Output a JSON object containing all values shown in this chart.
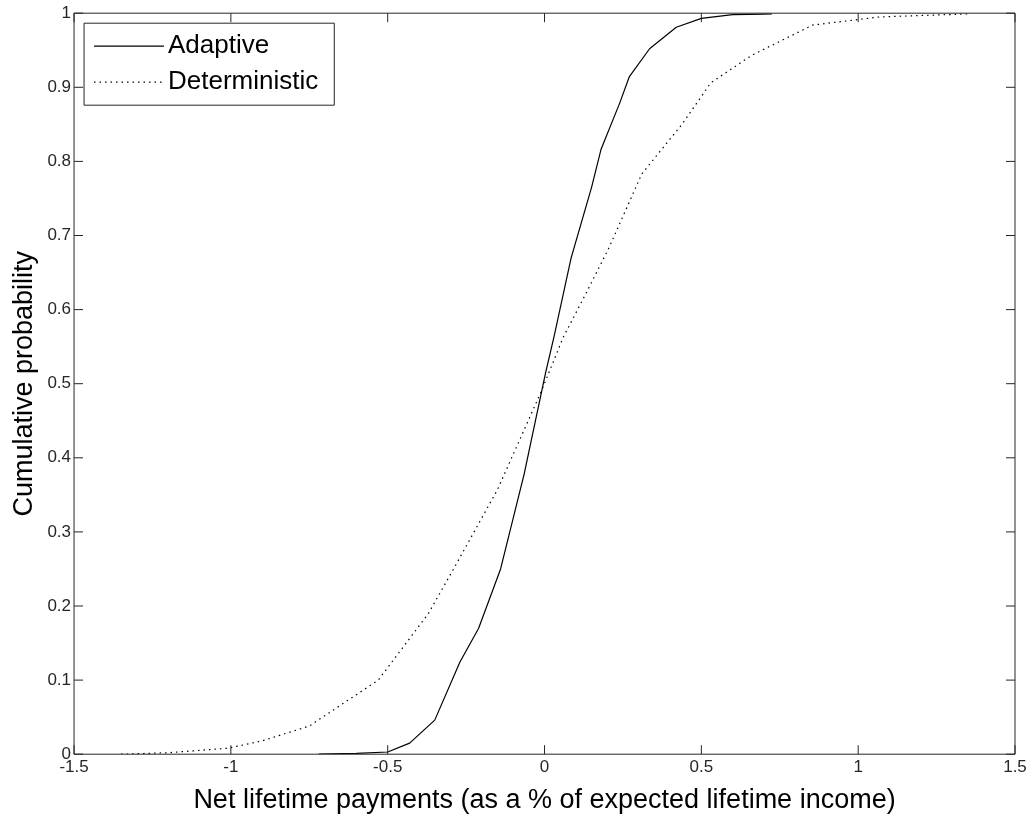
{
  "chart_data": {
    "type": "line",
    "xlabel": "Net lifetime payments (as a % of expected lifetime income)",
    "ylabel": "Cumulative probability",
    "xlim": [
      -1.5,
      1.5
    ],
    "xticks": [
      -1.5,
      -1,
      -0.5,
      0,
      0.5,
      1,
      1.5
    ],
    "ylim": [
      0,
      1
    ],
    "yticks": [
      0,
      0.1,
      0.2,
      0.3,
      0.4,
      0.5,
      0.6,
      0.7,
      0.8,
      0.9,
      1
    ],
    "grid": false,
    "legend": "top left",
    "marker": "none",
    "series": [
      {
        "name": "Adaptive",
        "color": "#000000",
        "line_style": "solid",
        "x": [
          -0.72,
          -0.6,
          -0.5,
          -0.43,
          -0.35,
          -0.27,
          -0.21,
          -0.14,
          -0.065,
          0.003,
          0.03,
          0.085,
          0.15,
          0.18,
          0.24,
          0.27,
          0.335,
          0.42,
          0.5,
          0.6,
          0.725
        ],
        "values": [
          0,
          0.001,
          0.003,
          0.015,
          0.046,
          0.124,
          0.17,
          0.25,
          0.378,
          0.514,
          0.563,
          0.67,
          0.765,
          0.816,
          0.879,
          0.914,
          0.952,
          0.981,
          0.993,
          0.998,
          0.999
        ]
      },
      {
        "name": "Deterministic",
        "color": "#000000",
        "line_style": "dotted",
        "x": [
          -1.35,
          -1.2,
          -1.01,
          -0.9,
          -0.75,
          -0.53,
          -0.37,
          -0.29,
          -0.15,
          -0.01,
          0.06,
          0.13,
          0.205,
          0.31,
          0.44,
          0.53,
          0.66,
          0.855,
          1.07,
          1.35
        ],
        "values": [
          0,
          0.002,
          0.008,
          0.018,
          0.038,
          0.1,
          0.19,
          0.25,
          0.357,
          0.49,
          0.563,
          0.62,
          0.683,
          0.783,
          0.851,
          0.906,
          0.943,
          0.984,
          0.995,
          0.999
        ]
      }
    ]
  }
}
